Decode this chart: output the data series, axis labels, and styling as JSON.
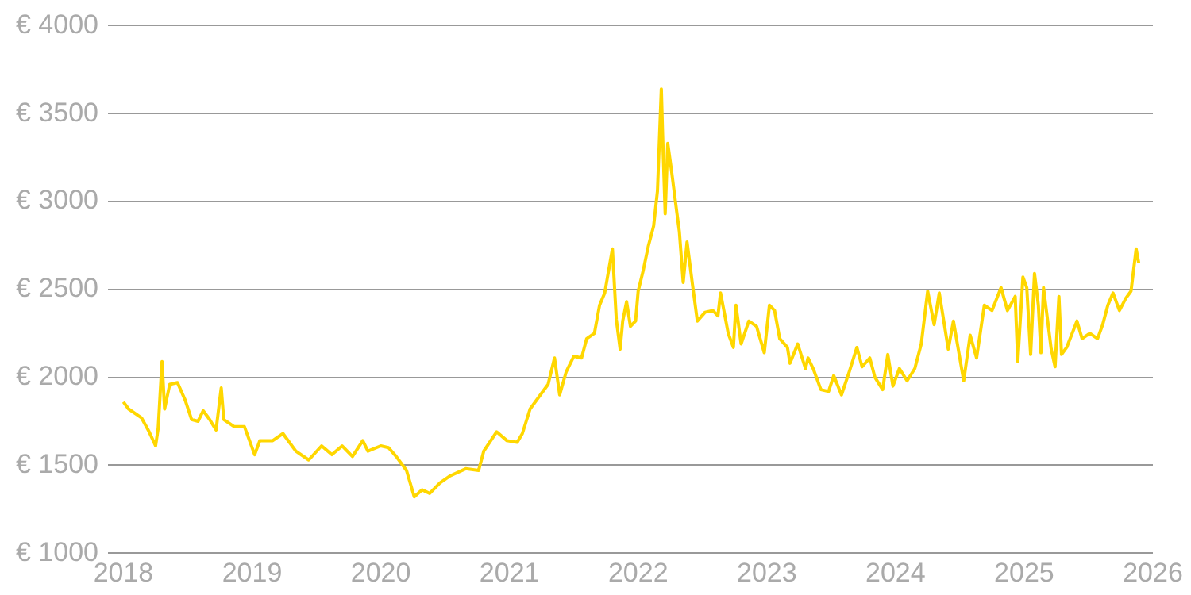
{
  "chart_data": {
    "type": "line",
    "grid": "y",
    "legend": false,
    "marker": "none",
    "line_style": "solid",
    "xlim": [
      2017.88,
      2026
    ],
    "xticks": [
      2018,
      2019,
      2020,
      2021,
      2022,
      2023,
      2024,
      2025,
      2026
    ],
    "ylim": [
      1000,
      4000
    ],
    "yticks": [
      {
        "value": 1000,
        "label": "€ 1000"
      },
      {
        "value": 1500,
        "label": "€ 1500"
      },
      {
        "value": 2000,
        "label": "€ 2000"
      },
      {
        "value": 2500,
        "label": "€ 2500"
      },
      {
        "value": 3000,
        "label": "€ 3000"
      },
      {
        "value": 3500,
        "label": "€ 3500"
      },
      {
        "value": 4000,
        "label": "€ 4000"
      }
    ],
    "series": [
      {
        "color": "#ffd700",
        "x": [
          2018.0,
          2018.04,
          2018.1,
          2018.14,
          2018.2,
          2018.25,
          2018.27,
          2018.3,
          2018.32,
          2018.36,
          2018.42,
          2018.48,
          2018.53,
          2018.58,
          2018.62,
          2018.67,
          2018.72,
          2018.76,
          2018.78,
          2018.86,
          2018.94,
          2019.02,
          2019.06,
          2019.16,
          2019.24,
          2019.34,
          2019.44,
          2019.54,
          2019.62,
          2019.7,
          2019.78,
          2019.86,
          2019.9,
          2020.0,
          2020.06,
          2020.12,
          2020.2,
          2020.26,
          2020.32,
          2020.38,
          2020.46,
          2020.54,
          2020.66,
          2020.76,
          2020.8,
          2020.9,
          2020.98,
          2021.06,
          2021.1,
          2021.16,
          2021.24,
          2021.3,
          2021.35,
          2021.39,
          2021.44,
          2021.5,
          2021.56,
          2021.6,
          2021.66,
          2021.7,
          2021.74,
          2021.8,
          2021.83,
          2021.86,
          2021.88,
          2021.91,
          2021.94,
          2021.98,
          2022.0,
          2022.04,
          2022.08,
          2022.12,
          2022.15,
          2022.18,
          2022.19,
          2022.21,
          2022.23,
          2022.26,
          2022.3,
          2022.32,
          2022.35,
          2022.38,
          2022.42,
          2022.46,
          2022.52,
          2022.58,
          2022.62,
          2022.64,
          2022.7,
          2022.74,
          2022.76,
          2022.8,
          2022.86,
          2022.92,
          2022.98,
          2023.02,
          2023.06,
          2023.1,
          2023.16,
          2023.18,
          2023.24,
          2023.3,
          2023.32,
          2023.36,
          2023.42,
          2023.48,
          2023.52,
          2023.58,
          2023.64,
          2023.7,
          2023.74,
          2023.8,
          2023.84,
          2023.9,
          2023.94,
          2023.98,
          2024.03,
          2024.09,
          2024.15,
          2024.2,
          2024.25,
          2024.3,
          2024.34,
          2024.41,
          2024.45,
          2024.53,
          2024.58,
          2024.63,
          2024.69,
          2024.75,
          2024.82,
          2024.87,
          2024.93,
          2024.95,
          2024.99,
          2025.02,
          2025.05,
          2025.08,
          2025.11,
          2025.13,
          2025.15,
          2025.21,
          2025.24,
          2025.27,
          2025.29,
          2025.33,
          2025.41,
          2025.45,
          2025.51,
          2025.57,
          2025.61,
          2025.65,
          2025.69,
          2025.74,
          2025.79,
          2025.83,
          2025.87,
          2025.89
        ],
        "values": [
          1860,
          1820,
          1790,
          1770,
          1690,
          1610,
          1710,
          2090,
          1820,
          1960,
          1970,
          1870,
          1760,
          1750,
          1810,
          1760,
          1700,
          1940,
          1760,
          1720,
          1720,
          1560,
          1640,
          1640,
          1680,
          1580,
          1530,
          1610,
          1560,
          1610,
          1550,
          1640,
          1580,
          1610,
          1600,
          1550,
          1470,
          1320,
          1360,
          1340,
          1400,
          1440,
          1480,
          1470,
          1580,
          1690,
          1640,
          1630,
          1680,
          1820,
          1900,
          1960,
          2110,
          1900,
          2030,
          2120,
          2110,
          2220,
          2250,
          2410,
          2480,
          2730,
          2330,
          2160,
          2320,
          2430,
          2290,
          2320,
          2490,
          2610,
          2750,
          2860,
          3060,
          3640,
          3380,
          2930,
          3330,
          3170,
          2940,
          2830,
          2540,
          2770,
          2540,
          2320,
          2370,
          2380,
          2350,
          2480,
          2250,
          2170,
          2410,
          2190,
          2320,
          2290,
          2140,
          2410,
          2380,
          2220,
          2170,
          2080,
          2190,
          2050,
          2110,
          2050,
          1930,
          1920,
          2010,
          1900,
          2030,
          2170,
          2060,
          2110,
          2000,
          1930,
          2130,
          1950,
          2050,
          1980,
          2050,
          2190,
          2490,
          2300,
          2480,
          2160,
          2320,
          1980,
          2240,
          2110,
          2410,
          2380,
          2510,
          2380,
          2460,
          2090,
          2570,
          2510,
          2130,
          2590,
          2410,
          2140,
          2510,
          2160,
          2060,
          2460,
          2130,
          2170,
          2320,
          2220,
          2250,
          2220,
          2300,
          2410,
          2480,
          2380,
          2450,
          2490,
          2730,
          2650
        ]
      }
    ]
  }
}
